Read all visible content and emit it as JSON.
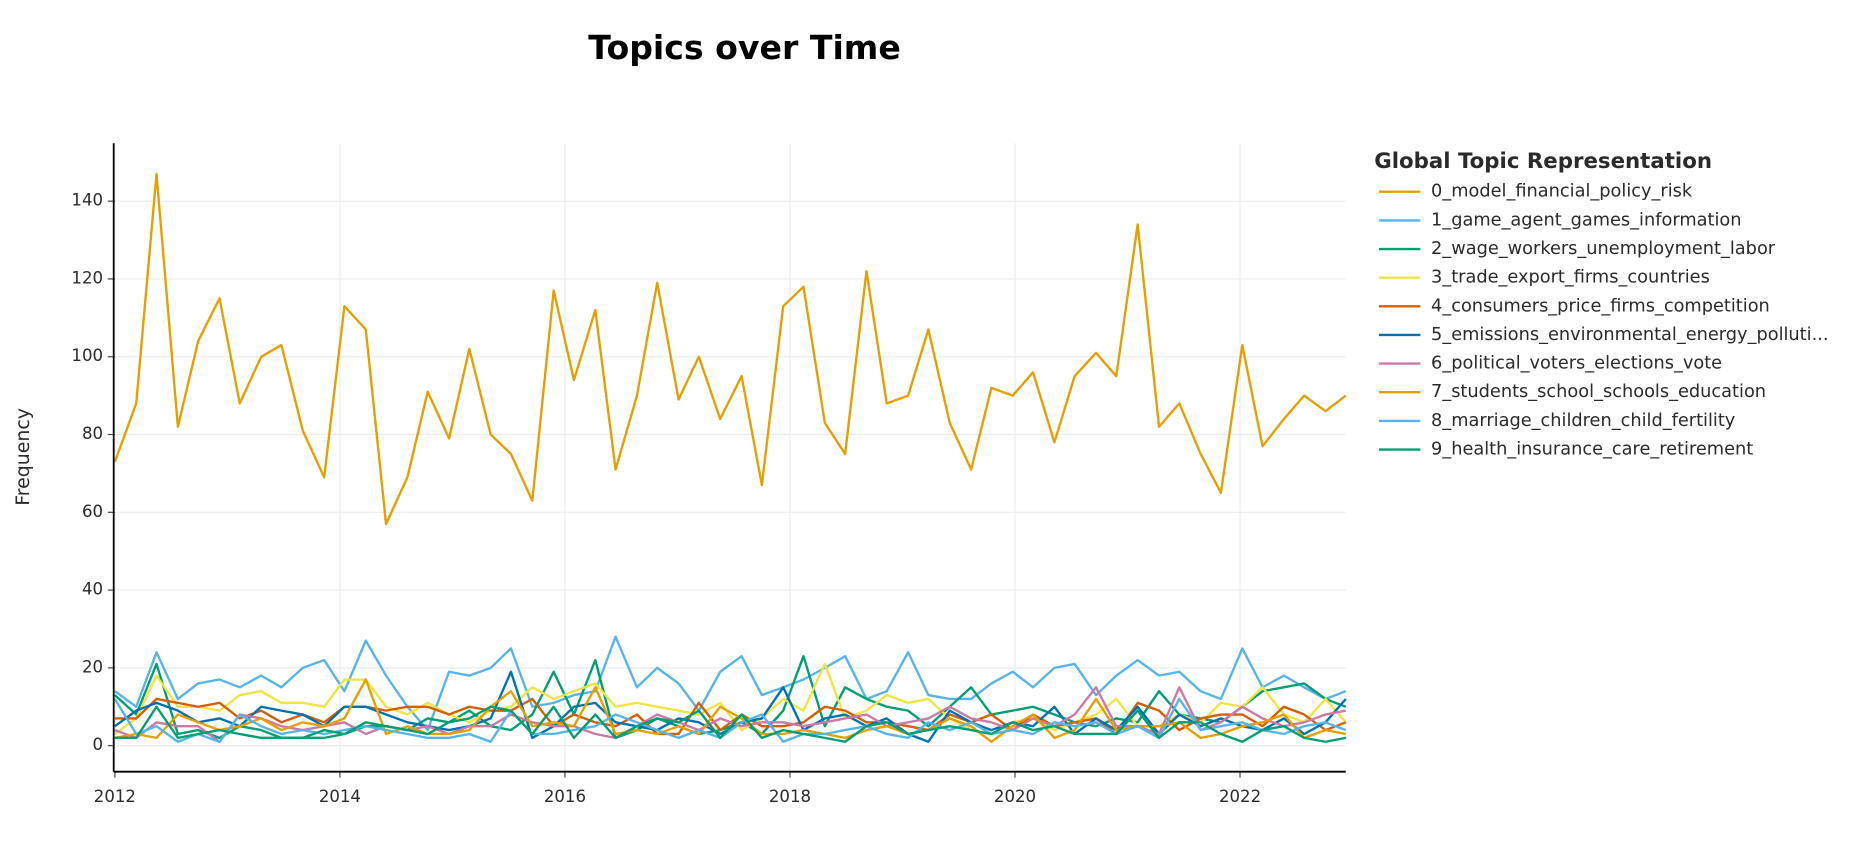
{
  "chart_data": {
    "type": "line",
    "title": "Topics over Time",
    "y_label": "Frequency",
    "legend_title": "Global Topic Representation",
    "legend": "right",
    "grid": true,
    "xlim": [
      2012,
      2022.94
    ],
    "xticks": [
      2012,
      2014,
      2016,
      2018,
      2020,
      2022
    ],
    "ylim": [
      -6.7,
      154.9
    ],
    "yticks": [
      0,
      20,
      40,
      60,
      80,
      100,
      120,
      140
    ],
    "x": [
      2012.0,
      2012.19,
      2012.37,
      2012.56,
      2012.74,
      2012.93,
      2013.11,
      2013.3,
      2013.48,
      2013.67,
      2013.86,
      2014.04,
      2014.23,
      2014.41,
      2014.6,
      2014.78,
      2014.97,
      2015.15,
      2015.34,
      2015.52,
      2015.71,
      2015.9,
      2016.08,
      2016.27,
      2016.45,
      2016.64,
      2016.82,
      2017.01,
      2017.19,
      2017.38,
      2017.57,
      2017.75,
      2017.94,
      2018.12,
      2018.31,
      2018.49,
      2018.68,
      2018.86,
      2019.05,
      2019.23,
      2019.42,
      2019.61,
      2019.79,
      2019.98,
      2020.16,
      2020.35,
      2020.53,
      2020.72,
      2020.9,
      2021.09,
      2021.28,
      2021.46,
      2021.65,
      2021.83,
      2022.02,
      2022.2,
      2022.39,
      2022.57,
      2022.76,
      2022.94
    ],
    "series": [
      {
        "name": "0_model_financial_policy_risk",
        "color": "#E69F00",
        "values": [
          73,
          88,
          147,
          82,
          104,
          115,
          88,
          100,
          103,
          81,
          69,
          113,
          107,
          57,
          69,
          91,
          79,
          102,
          80,
          75,
          63,
          117,
          94,
          112,
          71,
          90,
          119,
          89,
          100,
          84,
          95,
          67,
          113,
          118,
          83,
          75,
          122,
          88,
          90,
          107,
          83,
          71,
          92,
          90,
          96,
          78,
          95,
          101,
          95,
          134,
          82,
          88,
          75,
          65,
          103,
          77,
          84,
          90,
          86,
          90
        ]
      },
      {
        "name": "1_game_agent_games_information",
        "color": "#56B4E9",
        "values": [
          14,
          10,
          24,
          12,
          16,
          17,
          15,
          18,
          15,
          20,
          22,
          14,
          27,
          18,
          10,
          4,
          19,
          18,
          20,
          25,
          10,
          11,
          13,
          14,
          28,
          15,
          20,
          16,
          9,
          19,
          23,
          13,
          15,
          17,
          20,
          23,
          12,
          14,
          24,
          13,
          12,
          12,
          16,
          19,
          15,
          20,
          21,
          13,
          18,
          22,
          18,
          19,
          14,
          12,
          25,
          15,
          18,
          15,
          12,
          14
        ]
      },
      {
        "name": "2_wage_workers_unemployment_labor",
        "color": "#009E73",
        "values": [
          13,
          8,
          21,
          3,
          4,
          2,
          5,
          4,
          2,
          2,
          2,
          3,
          5,
          5,
          4,
          7,
          6,
          9,
          5,
          4,
          8,
          19,
          8,
          22,
          2,
          4,
          7,
          5,
          3,
          4,
          6,
          3,
          9,
          23,
          5,
          15,
          12,
          10,
          9,
          5,
          10,
          15,
          8,
          9,
          10,
          8,
          6,
          5,
          7,
          6,
          14,
          8,
          7,
          6,
          10,
          14,
          15,
          16,
          12,
          10
        ]
      },
      {
        "name": "3_trade_export_firms_countries",
        "color": "#F0E442",
        "values": [
          3,
          7,
          18,
          10,
          10,
          9,
          13,
          14,
          11,
          11,
          10,
          17,
          17,
          10,
          8,
          11,
          8,
          6,
          9,
          10,
          15,
          12,
          14,
          16,
          10,
          11,
          10,
          9,
          8,
          11,
          4,
          7,
          12,
          9,
          21,
          7,
          9,
          13,
          11,
          12,
          7,
          4,
          3,
          6,
          7,
          4,
          6,
          8,
          12,
          5,
          5,
          8,
          6,
          11,
          10,
          15,
          8,
          6,
          12,
          6
        ]
      },
      {
        "name": "4_consumers_price_firms_competition",
        "color": "#D55E00",
        "values": [
          7,
          7,
          12,
          11,
          10,
          11,
          7,
          9,
          6,
          8,
          6,
          10,
          10,
          9,
          10,
          10,
          8,
          10,
          9,
          9,
          12,
          5,
          8,
          6,
          5,
          8,
          3,
          3,
          11,
          4,
          8,
          5,
          5,
          6,
          10,
          9,
          6,
          6,
          5,
          4,
          8,
          6,
          8,
          4,
          8,
          5,
          6,
          7,
          3,
          11,
          9,
          4,
          7,
          8,
          8,
          5,
          10,
          8,
          4,
          6
        ]
      },
      {
        "name": "5_emissions_environmental_energy_polluti...",
        "color": "#0072B2",
        "values": [
          5,
          9,
          11,
          9,
          6,
          7,
          5,
          10,
          9,
          8,
          5,
          10,
          10,
          8,
          6,
          5,
          4,
          5,
          7,
          19,
          2,
          5,
          10,
          11,
          6,
          5,
          4,
          7,
          6,
          3,
          6,
          7,
          15,
          4,
          7,
          8,
          5,
          7,
          3,
          1,
          9,
          6,
          4,
          6,
          5,
          10,
          3,
          7,
          4,
          10,
          3,
          8,
          5,
          7,
          5,
          4,
          7,
          3,
          6,
          12
        ]
      },
      {
        "name": "6_political_voters_elections_vote",
        "color": "#CC79A7",
        "values": [
          4,
          2,
          6,
          5,
          5,
          1,
          8,
          7,
          5,
          4,
          5,
          6,
          3,
          5,
          4,
          5,
          3,
          5,
          5,
          8,
          6,
          5,
          5,
          3,
          2,
          5,
          8,
          6,
          4,
          7,
          5,
          6,
          6,
          5,
          6,
          7,
          8,
          5,
          6,
          7,
          10,
          7,
          6,
          4,
          7,
          5,
          8,
          15,
          5,
          5,
          3,
          15,
          4,
          6,
          10,
          7,
          5,
          6,
          8,
          9
        ]
      },
      {
        "name": "7_students_school_schools_education",
        "color": "#E69F00",
        "values": [
          2,
          3,
          2,
          8,
          6,
          4,
          5,
          7,
          4,
          6,
          5,
          7,
          17,
          3,
          5,
          3,
          3,
          4,
          10,
          14,
          5,
          6,
          5,
          15,
          3,
          4,
          3,
          5,
          3,
          10,
          7,
          3,
          3,
          4,
          3,
          2,
          4,
          5,
          3,
          4,
          7,
          5,
          1,
          5,
          8,
          2,
          4,
          12,
          4,
          5,
          5,
          6,
          2,
          3,
          5,
          6,
          8,
          2,
          4,
          3
        ]
      },
      {
        "name": "8_marriage_children_child_fertility",
        "color": "#56B4E9",
        "values": [
          12,
          3,
          5,
          1,
          3,
          1,
          8,
          5,
          3,
          4,
          3,
          4,
          5,
          4,
          3,
          2,
          2,
          3,
          1,
          9,
          3,
          3,
          4,
          5,
          8,
          6,
          4,
          2,
          4,
          2,
          6,
          8,
          1,
          3,
          3,
          4,
          5,
          3,
          2,
          6,
          4,
          6,
          3,
          4,
          3,
          6,
          5,
          6,
          3,
          5,
          2,
          12,
          4,
          5,
          6,
          4,
          3,
          5,
          6,
          4
        ]
      },
      {
        "name": "9_health_insurance_care_retirement",
        "color": "#009E73",
        "values": [
          2,
          2,
          10,
          2,
          3,
          4,
          3,
          2,
          2,
          2,
          4,
          3,
          6,
          5,
          4,
          3,
          6,
          7,
          10,
          9,
          3,
          10,
          2,
          8,
          2,
          5,
          7,
          6,
          9,
          2,
          8,
          2,
          4,
          3,
          2,
          1,
          5,
          6,
          3,
          4,
          5,
          4,
          3,
          6,
          4,
          5,
          3,
          3,
          3,
          9,
          2,
          6,
          6,
          3,
          1,
          4,
          5,
          2,
          1,
          2
        ]
      }
    ]
  }
}
